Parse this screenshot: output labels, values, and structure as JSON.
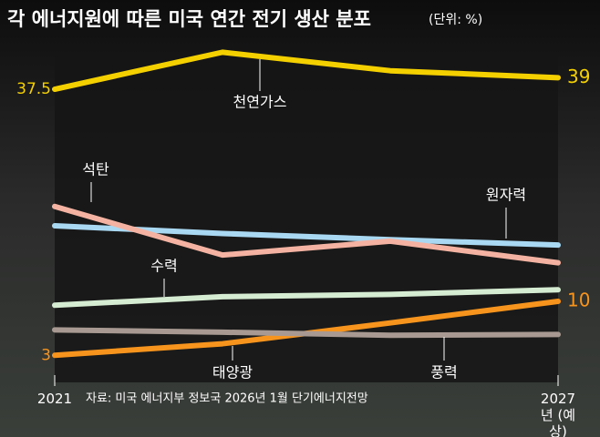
{
  "chart_data": {
    "type": "line",
    "title": "각 에너지원에 따른 미국 연간 전기 생산 분포",
    "subtitle": "(단위: %)",
    "source": "자료: 미국 에너지부 정보국 2026년 1월 단기에너지전망",
    "categories": [
      "2021",
      null,
      null,
      "2027년 (예상)"
    ],
    "ylim": [
      0,
      45
    ],
    "series": [
      {
        "name": "천연가스",
        "color": "#f5d000",
        "values": [
          37.5,
          42.3,
          39.9,
          39
        ],
        "endpoint_labels": true
      },
      {
        "name": "석탄",
        "color": "#f4b3a2",
        "values": [
          22.3,
          16.0,
          17.8,
          15.0
        ]
      },
      {
        "name": "원자력",
        "color": "#a9d9f2",
        "values": [
          19.8,
          18.8,
          18.0,
          17.3
        ]
      },
      {
        "name": "수력",
        "color": "#d6ecd2",
        "values": [
          9.5,
          10.6,
          10.9,
          11.5
        ]
      },
      {
        "name": "풍력",
        "color": "#a89a92",
        "values": [
          6.3,
          6.0,
          5.6,
          5.7
        ]
      },
      {
        "name": "태양광",
        "color": "#f7941d",
        "values": [
          3,
          4.5,
          7.2,
          10
        ],
        "endpoint_labels": true
      }
    ]
  }
}
